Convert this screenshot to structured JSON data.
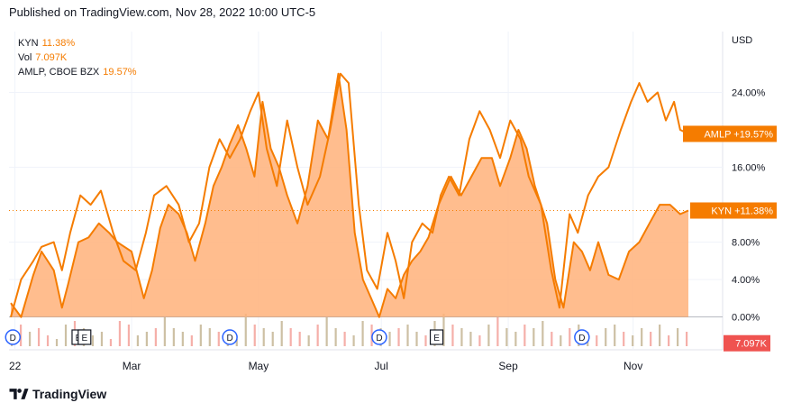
{
  "header": {
    "published": "Published on TradingView.com, Nov 28, 2022 10:00 UTC-5"
  },
  "legend": [
    {
      "name": "KYN",
      "value": "11.38%"
    },
    {
      "name": "Vol",
      "value": "7.097K"
    },
    {
      "name": "AMLP, CBOE BZX",
      "value": "19.57%"
    }
  ],
  "footer": {
    "brand": "TradingView",
    "logo_icon": "tradingview-logo-icon"
  },
  "colors": {
    "line": "#f57c00",
    "area_fill": "#ffb27a",
    "vol_up": "#c8b99a",
    "vol_down": "#f4a6a0",
    "badge": "#f57c00",
    "vol_badge": "#ef5350",
    "event_circle": "#2962ff"
  },
  "chart_data": {
    "type": "area",
    "y_axis": {
      "unit": "USD",
      "range": [
        -3.5,
        30.5
      ],
      "ticks": [
        "0.00%",
        "4.00%",
        "8.00%",
        "16.00%",
        "24.00%"
      ],
      "tick_values": [
        0,
        4,
        8,
        16,
        24
      ]
    },
    "x_axis": {
      "labels": [
        "22",
        "Mar",
        "May",
        "Jul",
        "Sep",
        "Nov"
      ],
      "label_dates": [
        "2022-01-03",
        "2022-03-01",
        "2022-05-02",
        "2022-07-01",
        "2022-09-01",
        "2022-11-01"
      ]
    },
    "x_range": [
      "2022-01-01",
      "2022-11-28"
    ],
    "price_badges": [
      {
        "series": "AMLP",
        "label": "AMLP",
        "value": "+19.57%",
        "y": 19.57
      },
      {
        "series": "KYN",
        "label": "KYN",
        "value": "+11.38%",
        "y": 11.38
      },
      {
        "series": "Vol",
        "label": "",
        "value": "7.097K",
        "y": -2.8
      }
    ],
    "events": [
      {
        "type": "D",
        "date": "2022-01-02"
      },
      {
        "type": "E",
        "date": "2022-02-03"
      },
      {
        "type": "E",
        "date": "2022-02-06"
      },
      {
        "type": "D",
        "date": "2022-04-18"
      },
      {
        "type": "D",
        "date": "2022-06-30"
      },
      {
        "type": "E",
        "date": "2022-07-28"
      },
      {
        "type": "D",
        "date": "2022-10-07"
      }
    ],
    "series": [
      {
        "name": "KYN",
        "filled": true,
        "points": [
          [
            "2022-01-01",
            1.5
          ],
          [
            "2022-01-06",
            0
          ],
          [
            "2022-01-12",
            4.5
          ],
          [
            "2022-01-16",
            7
          ],
          [
            "2022-01-22",
            5
          ],
          [
            "2022-01-26",
            1
          ],
          [
            "2022-01-29",
            3.5
          ],
          [
            "2022-02-03",
            8
          ],
          [
            "2022-02-08",
            8.5
          ],
          [
            "2022-02-13",
            10
          ],
          [
            "2022-02-18",
            9
          ],
          [
            "2022-02-22",
            8
          ],
          [
            "2022-03-01",
            7
          ],
          [
            "2022-03-07",
            2
          ],
          [
            "2022-03-11",
            5
          ],
          [
            "2022-03-15",
            9.5
          ],
          [
            "2022-03-19",
            12
          ],
          [
            "2022-03-24",
            11
          ],
          [
            "2022-03-28",
            9
          ],
          [
            "2022-04-01",
            6
          ],
          [
            "2022-04-06",
            10
          ],
          [
            "2022-04-10",
            14
          ],
          [
            "2022-04-14",
            16
          ],
          [
            "2022-04-18",
            18.5
          ],
          [
            "2022-04-22",
            20.5
          ],
          [
            "2022-04-26",
            18
          ],
          [
            "2022-04-30",
            15
          ],
          [
            "2022-05-04",
            23
          ],
          [
            "2022-05-08",
            18
          ],
          [
            "2022-05-12",
            16
          ],
          [
            "2022-05-16",
            13
          ],
          [
            "2022-05-21",
            10
          ],
          [
            "2022-05-26",
            14
          ],
          [
            "2022-05-31",
            21
          ],
          [
            "2022-06-05",
            19
          ],
          [
            "2022-06-10",
            26
          ],
          [
            "2022-06-14",
            20
          ],
          [
            "2022-06-18",
            9
          ],
          [
            "2022-06-22",
            4
          ],
          [
            "2022-06-26",
            2
          ],
          [
            "2022-06-30",
            0
          ],
          [
            "2022-07-04",
            3
          ],
          [
            "2022-07-08",
            2
          ],
          [
            "2022-07-12",
            4.5
          ],
          [
            "2022-07-16",
            6
          ],
          [
            "2022-07-20",
            7
          ],
          [
            "2022-07-24",
            8.5
          ],
          [
            "2022-07-29",
            12
          ],
          [
            "2022-08-04",
            15
          ],
          [
            "2022-08-09",
            13
          ],
          [
            "2022-08-14",
            15
          ],
          [
            "2022-08-19",
            17
          ],
          [
            "2022-08-24",
            17
          ],
          [
            "2022-08-28",
            14
          ],
          [
            "2022-09-02",
            17
          ],
          [
            "2022-09-06",
            20
          ],
          [
            "2022-09-10",
            18
          ],
          [
            "2022-09-14",
            14
          ],
          [
            "2022-09-20",
            10
          ],
          [
            "2022-09-24",
            4
          ],
          [
            "2022-09-28",
            1
          ],
          [
            "2022-10-03",
            8
          ],
          [
            "2022-10-07",
            7
          ],
          [
            "2022-10-11",
            5
          ],
          [
            "2022-10-15",
            8
          ],
          [
            "2022-10-20",
            4.5
          ],
          [
            "2022-10-25",
            4
          ],
          [
            "2022-10-30",
            7
          ],
          [
            "2022-11-04",
            8
          ],
          [
            "2022-11-09",
            10
          ],
          [
            "2022-11-14",
            12
          ],
          [
            "2022-11-19",
            12
          ],
          [
            "2022-11-24",
            11
          ],
          [
            "2022-11-28",
            11.38
          ]
        ]
      },
      {
        "name": "AMLP",
        "filled": false,
        "points": [
          [
            "2022-01-01",
            0
          ],
          [
            "2022-01-06",
            4
          ],
          [
            "2022-01-12",
            6
          ],
          [
            "2022-01-16",
            7.5
          ],
          [
            "2022-01-22",
            8
          ],
          [
            "2022-01-26",
            5
          ],
          [
            "2022-01-30",
            9
          ],
          [
            "2022-02-04",
            13
          ],
          [
            "2022-02-09",
            12
          ],
          [
            "2022-02-14",
            13.5
          ],
          [
            "2022-02-20",
            9
          ],
          [
            "2022-02-25",
            6
          ],
          [
            "2022-03-03",
            5
          ],
          [
            "2022-03-08",
            9
          ],
          [
            "2022-03-12",
            13
          ],
          [
            "2022-03-18",
            14
          ],
          [
            "2022-03-24",
            12
          ],
          [
            "2022-03-29",
            8
          ],
          [
            "2022-04-03",
            10
          ],
          [
            "2022-04-08",
            16
          ],
          [
            "2022-04-13",
            19
          ],
          [
            "2022-04-18",
            17
          ],
          [
            "2022-04-23",
            19
          ],
          [
            "2022-04-28",
            22
          ],
          [
            "2022-05-02",
            24
          ],
          [
            "2022-05-06",
            18
          ],
          [
            "2022-05-11",
            14
          ],
          [
            "2022-05-16",
            21
          ],
          [
            "2022-05-21",
            16
          ],
          [
            "2022-05-26",
            12
          ],
          [
            "2022-06-01",
            15
          ],
          [
            "2022-06-06",
            20
          ],
          [
            "2022-06-11",
            26
          ],
          [
            "2022-06-15",
            25
          ],
          [
            "2022-06-20",
            12
          ],
          [
            "2022-06-24",
            5
          ],
          [
            "2022-06-29",
            3
          ],
          [
            "2022-07-04",
            9
          ],
          [
            "2022-07-08",
            6
          ],
          [
            "2022-07-12",
            2
          ],
          [
            "2022-07-16",
            8
          ],
          [
            "2022-07-21",
            10
          ],
          [
            "2022-07-26",
            9
          ],
          [
            "2022-07-30",
            13
          ],
          [
            "2022-08-03",
            15
          ],
          [
            "2022-08-08",
            13
          ],
          [
            "2022-08-13",
            19
          ],
          [
            "2022-08-18",
            22
          ],
          [
            "2022-08-23",
            20
          ],
          [
            "2022-08-28",
            17
          ],
          [
            "2022-09-02",
            21
          ],
          [
            "2022-09-07",
            19
          ],
          [
            "2022-09-11",
            15
          ],
          [
            "2022-09-17",
            12
          ],
          [
            "2022-09-22",
            5
          ],
          [
            "2022-09-26",
            1
          ],
          [
            "2022-10-01",
            11
          ],
          [
            "2022-10-05",
            9
          ],
          [
            "2022-10-10",
            13
          ],
          [
            "2022-10-15",
            15
          ],
          [
            "2022-10-20",
            16
          ],
          [
            "2022-10-26",
            20
          ],
          [
            "2022-10-31",
            23
          ],
          [
            "2022-11-04",
            25
          ],
          [
            "2022-11-08",
            23
          ],
          [
            "2022-11-13",
            24
          ],
          [
            "2022-11-17",
            21
          ],
          [
            "2022-11-21",
            23
          ],
          [
            "2022-11-24",
            20
          ],
          [
            "2022-11-28",
            19.57
          ]
        ]
      }
    ],
    "volume": {
      "description": "volume bars near the bottom",
      "bars": [
        [
          4,
          3
        ],
        [
          3,
          6
        ],
        [
          2,
          4
        ],
        [
          1,
          5
        ],
        [
          3,
          3
        ],
        [
          2,
          2
        ],
        [
          4,
          6
        ],
        [
          3,
          7
        ],
        [
          4,
          5
        ],
        [
          4,
          3
        ],
        [
          2,
          4
        ],
        [
          3,
          2
        ],
        [
          5,
          7
        ],
        [
          3,
          6
        ],
        [
          2,
          3
        ],
        [
          4,
          4
        ],
        [
          3,
          5
        ],
        [
          4,
          8
        ],
        [
          2,
          5
        ],
        [
          4,
          4
        ],
        [
          3,
          3
        ],
        [
          2,
          6
        ],
        [
          4,
          5
        ],
        [
          3,
          4
        ],
        [
          4,
          3
        ],
        [
          2,
          2
        ],
        [
          4,
          9
        ],
        [
          3,
          6
        ],
        [
          2,
          5
        ],
        [
          4,
          4
        ],
        [
          2,
          7
        ],
        [
          3,
          5
        ],
        [
          3,
          4
        ],
        [
          2,
          3
        ],
        [
          3,
          6
        ],
        [
          2,
          8
        ],
        [
          4,
          5
        ],
        [
          3,
          4
        ],
        [
          2,
          3
        ],
        [
          4,
          7
        ],
        [
          3,
          6
        ],
        [
          4,
          5
        ],
        [
          2,
          4
        ],
        [
          3,
          5
        ],
        [
          2,
          6
        ],
        [
          4,
          4
        ],
        [
          3,
          3
        ],
        [
          4,
          7
        ],
        [
          2,
          9
        ],
        [
          3,
          6
        ],
        [
          4,
          5
        ],
        [
          2,
          4
        ],
        [
          3,
          3
        ],
        [
          4,
          6
        ],
        [
          3,
          8
        ],
        [
          2,
          5
        ],
        [
          4,
          4
        ],
        [
          3,
          6
        ],
        [
          2,
          5
        ],
        [
          4,
          7
        ],
        [
          3,
          4
        ],
        [
          2,
          3
        ],
        [
          3,
          5
        ],
        [
          4,
          6
        ],
        [
          2,
          4
        ],
        [
          3,
          3
        ],
        [
          4,
          5
        ],
        [
          2,
          6
        ],
        [
          3,
          4
        ],
        [
          2,
          3
        ],
        [
          4,
          5
        ],
        [
          3,
          4
        ],
        [
          2,
          6
        ],
        [
          3,
          3
        ],
        [
          4,
          5
        ],
        [
          3,
          4
        ]
      ]
    }
  }
}
